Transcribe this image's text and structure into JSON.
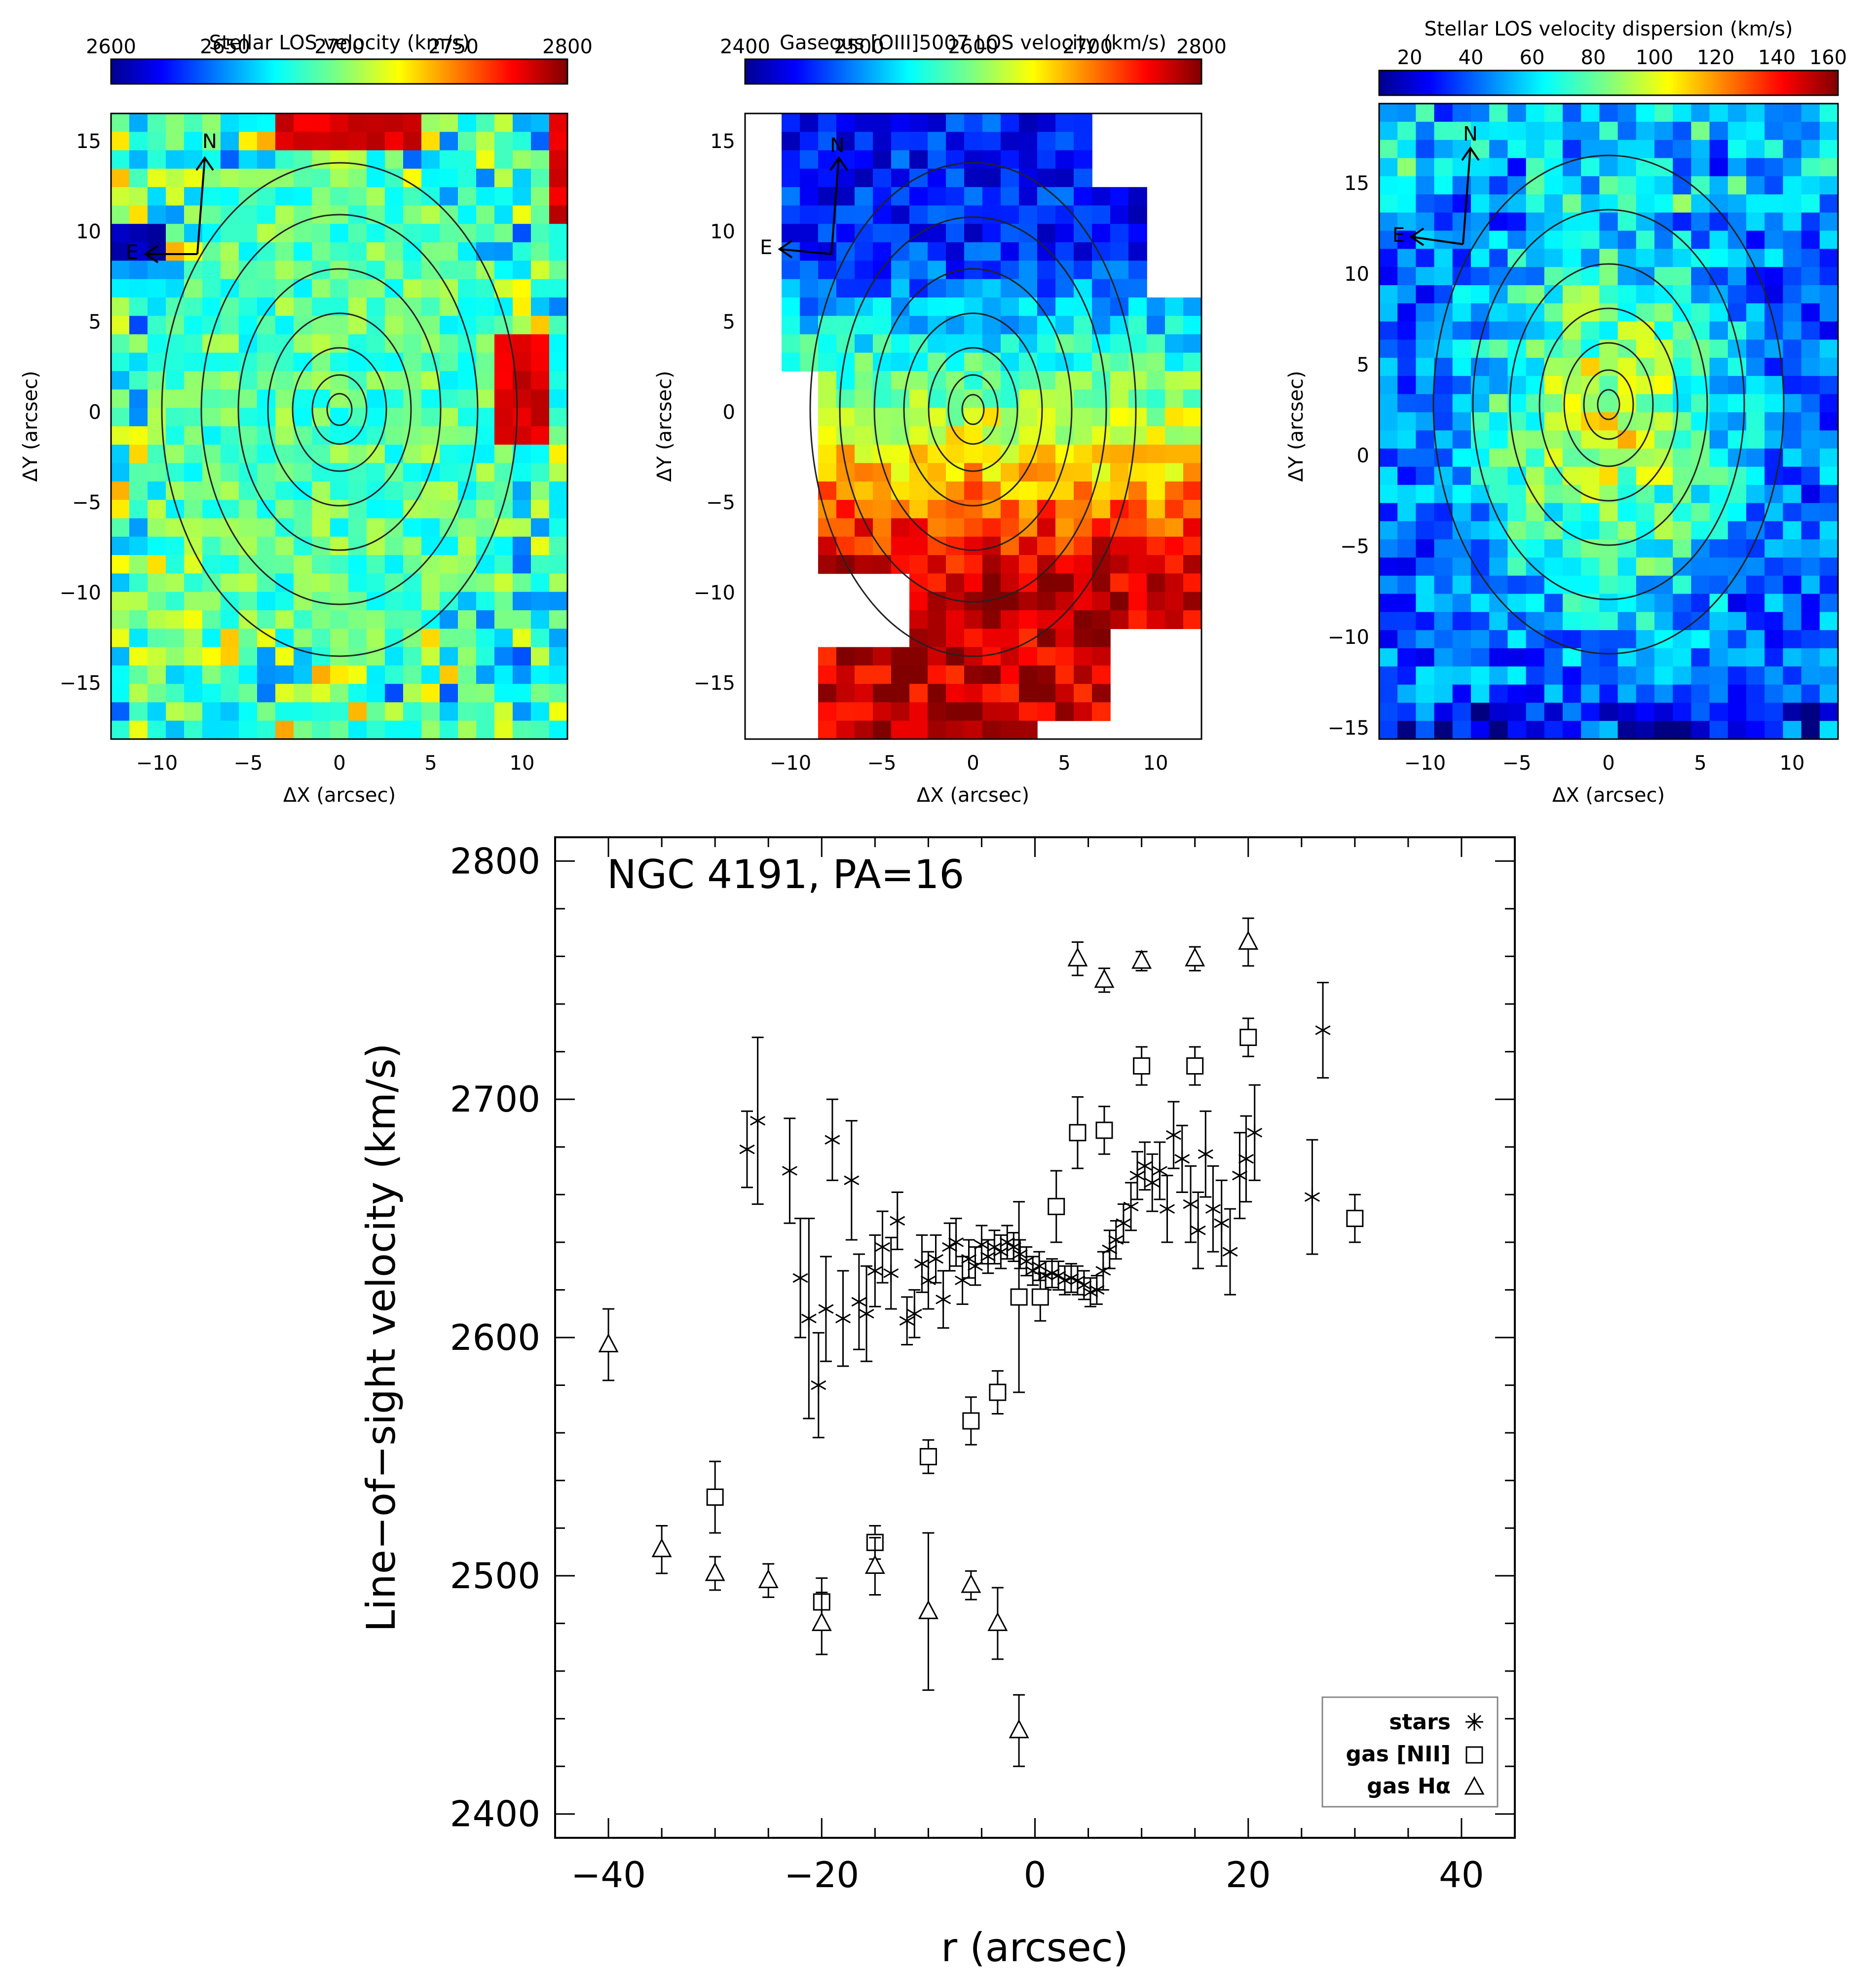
{
  "panels": [
    {
      "title": "Stellar LOS velocity (km/s)",
      "cbar_ticks": [
        "2600",
        "2650",
        "2700",
        "2750",
        "2800"
      ],
      "xticks": [
        "−10",
        "−5",
        "0",
        "5",
        "10"
      ],
      "yticks": [
        "15",
        "10",
        "5",
        "0",
        "−5",
        "−10",
        "−15"
      ],
      "xlabel": "ΔX (arcsec)",
      "ylabel": "ΔY (arcsec)",
      "compass_n": "N",
      "compass_e": "E",
      "map_type": "stellar-velocity"
    },
    {
      "title": "Gaseous [OIII]5007 LOS velocity (km/s)",
      "cbar_ticks": [
        "2400",
        "2500",
        "2600",
        "2700",
        "2800"
      ],
      "xticks": [
        "−10",
        "−5",
        "0",
        "5",
        "10"
      ],
      "yticks": [
        "15",
        "10",
        "5",
        "0",
        "−5",
        "−10",
        "−15"
      ],
      "xlabel": "ΔX (arcsec)",
      "ylabel": "ΔY (arcsec)",
      "compass_n": "N",
      "compass_e": "E",
      "map_type": "gas-velocity"
    },
    {
      "title": "Stellar LOS velocity dispersion (km/s)",
      "cbar_ticks": [
        "20",
        "40",
        "60",
        "80",
        "100",
        "120",
        "140",
        "160"
      ],
      "xticks": [
        "−10",
        "−5",
        "0",
        "5",
        "10"
      ],
      "yticks": [
        "15",
        "10",
        "5",
        "0",
        "−5",
        "−10",
        "−15"
      ],
      "xlabel": "ΔX (arcsec)",
      "ylabel": "ΔY (arcsec)",
      "compass_n": "N",
      "compass_e": "E",
      "map_type": "stellar-dispersion"
    }
  ],
  "chart_data": [
    {
      "type": "heatmap",
      "title": "Stellar LOS velocity (km/s)",
      "colorbar_range": [
        2600,
        2800
      ],
      "xlim": [
        -12.5,
        12.5
      ],
      "ylim": [
        -18.3,
        16.3
      ],
      "xlabel": "ΔX (arcsec)",
      "ylabel": "ΔY (arcsec)",
      "dominant_value": 2700,
      "high_regions": [
        {
          "x": [
            -3,
            4
          ],
          "y": [
            14,
            16.3
          ],
          "value": 2790
        },
        {
          "x": [
            8.5,
            11.5
          ],
          "y": [
            -2,
            4
          ],
          "value": 2790
        },
        {
          "x": [
            11.5,
            12.5
          ],
          "y": [
            10,
            16
          ],
          "value": 2790
        }
      ],
      "low_regions": [
        {
          "x": [
            -12,
            -10
          ],
          "y": [
            8,
            10.5
          ],
          "value": 2605
        }
      ]
    },
    {
      "type": "heatmap",
      "title": "Gaseous [OIII]5007 LOS velocity (km/s)",
      "colorbar_range": [
        2400,
        2800
      ],
      "xlim": [
        -12.5,
        12.5
      ],
      "ylim": [
        -18.3,
        16.3
      ],
      "xlabel": "ΔX (arcsec)",
      "ylabel": "ΔY (arcsec)",
      "north_region_value": 2460,
      "south_region_value": 2770
    },
    {
      "type": "heatmap",
      "title": "Stellar LOS velocity dispersion (km/s)",
      "colorbar_range": [
        10,
        160
      ],
      "xlim": [
        -12.5,
        12.5
      ],
      "ylim": [
        -15.3,
        19.3
      ],
      "xlabel": "ΔX (arcsec)",
      "ylabel": "ΔY (arcsec)",
      "central_value": 105,
      "outer_value": 45
    },
    {
      "type": "scatter",
      "name": "NGC 4191, PA=16",
      "xlabel": "r (arcsec)",
      "ylabel": "Line−of−sight velocity (km/s)",
      "xlim": [
        -45,
        45
      ],
      "ylim": [
        2390,
        2810
      ],
      "xticks": [
        "−40",
        "−20",
        "0",
        "20",
        "40"
      ],
      "yticks": [
        "2400",
        "2500",
        "2600",
        "2700",
        "2800"
      ],
      "legend_position": "bottom-right",
      "series": [
        {
          "name": "stars",
          "marker": "asterisk",
          "points": [
            {
              "x": -27,
              "y": 2679,
              "err": 16
            },
            {
              "x": -26,
              "y": 2691,
              "err": 35
            },
            {
              "x": -23,
              "y": 2670,
              "err": 22
            },
            {
              "x": -22,
              "y": 2625,
              "err": 25
            },
            {
              "x": -21.2,
              "y": 2608,
              "err": 42
            },
            {
              "x": -20.3,
              "y": 2580,
              "err": 22
            },
            {
              "x": -19.6,
              "y": 2612,
              "err": 22
            },
            {
              "x": -19,
              "y": 2683,
              "err": 17
            },
            {
              "x": -18,
              "y": 2608,
              "err": 20
            },
            {
              "x": -17.2,
              "y": 2666,
              "err": 25
            },
            {
              "x": -16.5,
              "y": 2615,
              "err": 20
            },
            {
              "x": -15.8,
              "y": 2610,
              "err": 20
            },
            {
              "x": -15,
              "y": 2628,
              "err": 15
            },
            {
              "x": -14.3,
              "y": 2638,
              "err": 15
            },
            {
              "x": -13.5,
              "y": 2627,
              "err": 15
            },
            {
              "x": -12.9,
              "y": 2649,
              "err": 12
            },
            {
              "x": -12,
              "y": 2607,
              "err": 10
            },
            {
              "x": -11.3,
              "y": 2610,
              "err": 10
            },
            {
              "x": -10.6,
              "y": 2631,
              "err": 12
            },
            {
              "x": -10,
              "y": 2624,
              "err": 12
            },
            {
              "x": -9.3,
              "y": 2633,
              "err": 10
            },
            {
              "x": -8.6,
              "y": 2616,
              "err": 12
            },
            {
              "x": -8,
              "y": 2638,
              "err": 10
            },
            {
              "x": -7.4,
              "y": 2640,
              "err": 10
            },
            {
              "x": -6.8,
              "y": 2624,
              "err": 10
            },
            {
              "x": -6.2,
              "y": 2633,
              "err": 8
            },
            {
              "x": -5.6,
              "y": 2630,
              "err": 8
            },
            {
              "x": -5,
              "y": 2639,
              "err": 8
            },
            {
              "x": -4.4,
              "y": 2634,
              "err": 7
            },
            {
              "x": -3.8,
              "y": 2638,
              "err": 7
            },
            {
              "x": -3.2,
              "y": 2636,
              "err": 7
            },
            {
              "x": -2.6,
              "y": 2640,
              "err": 7
            },
            {
              "x": -2,
              "y": 2638,
              "err": 6
            },
            {
              "x": -1.4,
              "y": 2635,
              "err": 6
            },
            {
              "x": -0.8,
              "y": 2632,
              "err": 6
            },
            {
              "x": -0.2,
              "y": 2628,
              "err": 6
            },
            {
              "x": 0.4,
              "y": 2630,
              "err": 6
            },
            {
              "x": 1,
              "y": 2626,
              "err": 6
            },
            {
              "x": 1.6,
              "y": 2627,
              "err": 6
            },
            {
              "x": 2.2,
              "y": 2626,
              "err": 6
            },
            {
              "x": 2.8,
              "y": 2624,
              "err": 6
            },
            {
              "x": 3.4,
              "y": 2625,
              "err": 6
            },
            {
              "x": 4,
              "y": 2624,
              "err": 6
            },
            {
              "x": 4.6,
              "y": 2622,
              "err": 6
            },
            {
              "x": 5.2,
              "y": 2619,
              "err": 6
            },
            {
              "x": 5.8,
              "y": 2620,
              "err": 6
            },
            {
              "x": 6.4,
              "y": 2628,
              "err": 8
            },
            {
              "x": 7,
              "y": 2637,
              "err": 8
            },
            {
              "x": 7.6,
              "y": 2641,
              "err": 8
            },
            {
              "x": 8.3,
              "y": 2648,
              "err": 8
            },
            {
              "x": 9,
              "y": 2655,
              "err": 10
            },
            {
              "x": 9.6,
              "y": 2668,
              "err": 10
            },
            {
              "x": 10.3,
              "y": 2672,
              "err": 10
            },
            {
              "x": 11,
              "y": 2665,
              "err": 12
            },
            {
              "x": 11.7,
              "y": 2670,
              "err": 12
            },
            {
              "x": 12.4,
              "y": 2654,
              "err": 14
            },
            {
              "x": 13,
              "y": 2685,
              "err": 14
            },
            {
              "x": 13.8,
              "y": 2675,
              "err": 14
            },
            {
              "x": 14.6,
              "y": 2656,
              "err": 16
            },
            {
              "x": 15.3,
              "y": 2645,
              "err": 16
            },
            {
              "x": 16,
              "y": 2677,
              "err": 18
            },
            {
              "x": 16.7,
              "y": 2654,
              "err": 18
            },
            {
              "x": 17.5,
              "y": 2648,
              "err": 18
            },
            {
              "x": 18.3,
              "y": 2636,
              "err": 18
            },
            {
              "x": 19.2,
              "y": 2668,
              "err": 18
            },
            {
              "x": 19.8,
              "y": 2675,
              "err": 18
            },
            {
              "x": 20.6,
              "y": 2686,
              "err": 20
            },
            {
              "x": 26,
              "y": 2659,
              "err": 24
            },
            {
              "x": 27,
              "y": 2729,
              "err": 20
            }
          ]
        },
        {
          "name": "gas [NII]",
          "marker": "square",
          "points": [
            {
              "x": -30,
              "y": 2533,
              "err": 15
            },
            {
              "x": -20,
              "y": 2489,
              "err": 10
            },
            {
              "x": -15,
              "y": 2514,
              "err": 7
            },
            {
              "x": -10,
              "y": 2550,
              "err": 7
            },
            {
              "x": -6,
              "y": 2565,
              "err": 10
            },
            {
              "x": -3.5,
              "y": 2577,
              "err": 9
            },
            {
              "x": -1.5,
              "y": 2617,
              "err": 40
            },
            {
              "x": 0.5,
              "y": 2617,
              "err": 10
            },
            {
              "x": 2,
              "y": 2655,
              "err": 15
            },
            {
              "x": 4,
              "y": 2686,
              "err": 15
            },
            {
              "x": 6.5,
              "y": 2687,
              "err": 10
            },
            {
              "x": 10,
              "y": 2714,
              "err": 8
            },
            {
              "x": 15,
              "y": 2714,
              "err": 8
            },
            {
              "x": 20,
              "y": 2726,
              "err": 8
            },
            {
              "x": 30,
              "y": 2650,
              "err": 10
            }
          ]
        },
        {
          "name": "gas Hα",
          "marker": "triangle",
          "points": [
            {
              "x": -40,
              "y": 2597,
              "err": 15
            },
            {
              "x": -35,
              "y": 2511,
              "err": 10
            },
            {
              "x": -30,
              "y": 2501,
              "err": 7
            },
            {
              "x": -25,
              "y": 2498,
              "err": 7
            },
            {
              "x": -20,
              "y": 2480,
              "err": 13
            },
            {
              "x": -15,
              "y": 2504,
              "err": 12
            },
            {
              "x": -10,
              "y": 2485,
              "err": 33
            },
            {
              "x": -6,
              "y": 2496,
              "err": 6
            },
            {
              "x": -3.5,
              "y": 2480,
              "err": 15
            },
            {
              "x": -1.5,
              "y": 2435,
              "err": 15
            },
            {
              "x": 4,
              "y": 2759,
              "err": 7
            },
            {
              "x": 6.5,
              "y": 2750,
              "err": 5
            },
            {
              "x": 10,
              "y": 2758,
              "err": 4
            },
            {
              "x": 15,
              "y": 2759,
              "err": 5
            },
            {
              "x": 20,
              "y": 2766,
              "err": 10
            }
          ]
        }
      ]
    }
  ],
  "legend": {
    "stars": "stars",
    "nii": "gas [NII]",
    "ha": "gas Hα"
  },
  "colors": {
    "axis": "#000000",
    "background": "#ffffff"
  }
}
